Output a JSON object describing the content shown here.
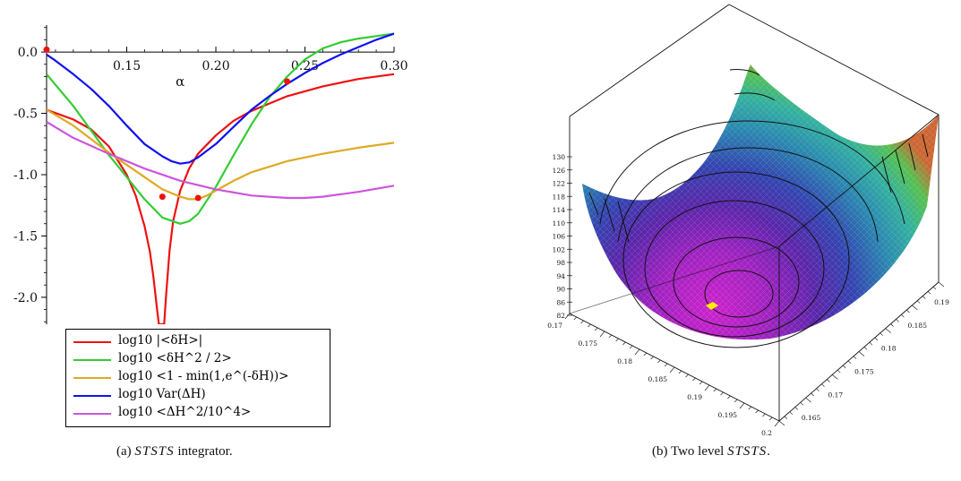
{
  "chart_data": [
    {
      "type": "line",
      "panel": "a",
      "caption_label": "(a)",
      "caption_name": "STSTS",
      "caption_suffix": " integrator.",
      "xlabel": "α",
      "ylabel": "",
      "xlim": [
        0.105,
        0.3
      ],
      "ylim": [
        -2.22,
        0.22
      ],
      "x_ticks": [
        {
          "value": 0.15,
          "label": "0.15"
        },
        {
          "value": 0.2,
          "label": "0.20"
        },
        {
          "value": 0.25,
          "label": "0.25"
        },
        {
          "value": 0.3,
          "label": "0.30"
        }
      ],
      "y_ticks": [
        {
          "value": 0.0,
          "label": "0.0"
        },
        {
          "value": -0.5,
          "label": "-0.5"
        },
        {
          "value": -1.0,
          "label": "-1.0"
        },
        {
          "value": -1.5,
          "label": "-1.5"
        },
        {
          "value": -2.0,
          "label": "-2.0"
        }
      ],
      "legend_position": "bottom-left",
      "grid": false,
      "series": [
        {
          "name": "log10 |<δH>|",
          "color": "#ee1111",
          "x": [
            0.105,
            0.12,
            0.13,
            0.14,
            0.15,
            0.155,
            0.16,
            0.163,
            0.165,
            0.167,
            0.168,
            0.169,
            0.171,
            0.172,
            0.174,
            0.176,
            0.18,
            0.185,
            0.19,
            0.2,
            0.21,
            0.22,
            0.23,
            0.24,
            0.25,
            0.26,
            0.28,
            0.3
          ],
          "y": [
            -0.47,
            -0.55,
            -0.63,
            -0.77,
            -1.0,
            -1.17,
            -1.42,
            -1.63,
            -1.84,
            -2.1,
            -2.22,
            -2.22,
            -2.22,
            -2.0,
            -1.62,
            -1.38,
            -1.13,
            -0.95,
            -0.83,
            -0.68,
            -0.56,
            -0.48,
            -0.42,
            -0.36,
            -0.32,
            -0.28,
            -0.22,
            -0.18
          ]
        },
        {
          "name": "log10 <δH^2 / 2>",
          "color": "#33cc33",
          "x": [
            0.105,
            0.12,
            0.14,
            0.16,
            0.17,
            0.18,
            0.185,
            0.19,
            0.2,
            0.21,
            0.22,
            0.23,
            0.24,
            0.25,
            0.26,
            0.27,
            0.28,
            0.29,
            0.3
          ],
          "y": [
            -0.18,
            -0.44,
            -0.84,
            -1.2,
            -1.35,
            -1.4,
            -1.38,
            -1.32,
            -1.1,
            -0.84,
            -0.59,
            -0.37,
            -0.2,
            -0.06,
            0.03,
            0.08,
            0.11,
            0.13,
            0.15
          ]
        },
        {
          "name": "log10 <1 - min(1,e^(-δH))>",
          "color": "#ddaa22",
          "x": [
            0.105,
            0.12,
            0.14,
            0.16,
            0.17,
            0.18,
            0.185,
            0.19,
            0.195,
            0.2,
            0.21,
            0.22,
            0.24,
            0.26,
            0.28,
            0.3
          ],
          "y": [
            -0.47,
            -0.6,
            -0.82,
            -1.02,
            -1.12,
            -1.18,
            -1.2,
            -1.2,
            -1.17,
            -1.13,
            -1.05,
            -0.98,
            -0.89,
            -0.83,
            -0.78,
            -0.74
          ]
        },
        {
          "name": "log10 Var(ΔH)",
          "color": "#1111ee",
          "x": [
            0.105,
            0.11,
            0.12,
            0.13,
            0.14,
            0.15,
            0.16,
            0.17,
            0.175,
            0.18,
            0.185,
            0.19,
            0.2,
            0.21,
            0.22,
            0.23,
            0.24,
            0.25,
            0.26,
            0.27,
            0.28,
            0.29,
            0.3
          ],
          "y": [
            -0.02,
            -0.07,
            -0.18,
            -0.3,
            -0.44,
            -0.6,
            -0.75,
            -0.85,
            -0.89,
            -0.91,
            -0.9,
            -0.86,
            -0.75,
            -0.61,
            -0.47,
            -0.36,
            -0.26,
            -0.17,
            -0.09,
            -0.02,
            0.04,
            0.1,
            0.15
          ]
        },
        {
          "name": "log10 <ΔH^2/10^4>",
          "color": "#cc55dd",
          "x": [
            0.105,
            0.12,
            0.14,
            0.16,
            0.18,
            0.2,
            0.22,
            0.24,
            0.25,
            0.26,
            0.28,
            0.3
          ],
          "y": [
            -0.57,
            -0.7,
            -0.83,
            -0.95,
            -1.05,
            -1.12,
            -1.17,
            -1.19,
            -1.19,
            -1.18,
            -1.14,
            -1.09
          ]
        }
      ],
      "markers": {
        "color": "#ee1111",
        "points": [
          {
            "x": 0.105,
            "y": 0.02
          },
          {
            "x": 0.17,
            "y": -1.18
          },
          {
            "x": 0.19,
            "y": -1.19
          },
          {
            "x": 0.24,
            "y": -0.24
          }
        ]
      }
    },
    {
      "type": "surface",
      "panel": "b",
      "caption_label": "(b)",
      "caption_pre": "Two level ",
      "caption_name": "STSTS",
      "caption_suffix": ".",
      "z_ticks": [
        "130",
        "126",
        "122",
        "118",
        "114",
        "110",
        "106",
        "102",
        "98",
        "94",
        "90",
        "86",
        "82"
      ],
      "x_ticks": [
        "0.17",
        "0.175",
        "0.18",
        "0.185",
        "0.19",
        "0.195",
        "0.2"
      ],
      "y_ticks": [
        "0.165",
        "0.17",
        "0.175",
        "0.18",
        "0.185",
        "0.19"
      ],
      "minimum_marker_color": "#ffee00",
      "colormap": [
        "#dd5522",
        "#55cc44",
        "#22aaaa",
        "#3355bb",
        "#5522aa",
        "#cc22cc"
      ]
    }
  ]
}
